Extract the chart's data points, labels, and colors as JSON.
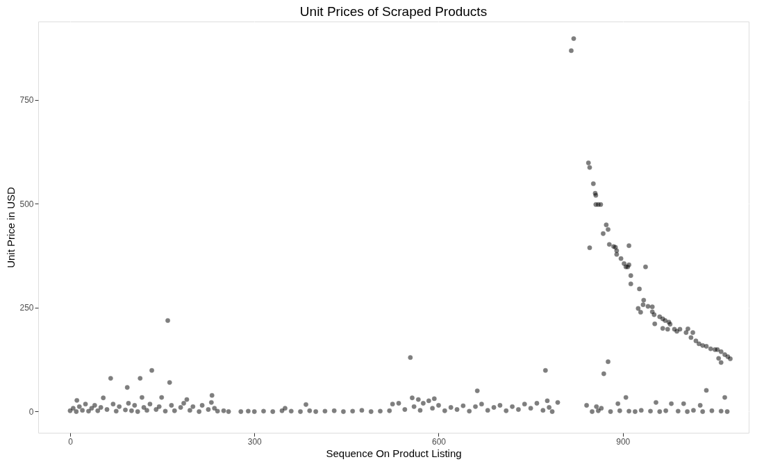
{
  "chart_data": {
    "type": "scatter",
    "title": "Unit Prices of Scraped Products",
    "xlabel": "Sequence On Product Listing",
    "ylabel": "Unit Price in USD",
    "xlim": [
      -52,
      1105
    ],
    "ylim": [
      -51,
      938
    ],
    "xticks": [
      0,
      300,
      600,
      900
    ],
    "yticks": [
      0,
      250,
      500,
      750
    ],
    "grid": true,
    "marker": "circle",
    "series": [
      {
        "color": "#000000",
        "x": [
          159,
          66,
          93,
          114,
          133,
          162,
          11,
          54,
          117,
          149,
          190,
          231,
          230,
          554,
          663,
          774,
          794,
          557,
          593,
          584,
          567,
          384,
          777,
          820,
          816,
          844,
          846,
          852,
          855,
          856,
          856,
          860,
          864,
          873,
          876,
          868,
          846,
          878,
          885,
          888,
          890,
          890,
          897,
          902,
          905,
          908,
          910,
          910,
          913,
          913,
          927,
          937,
          934,
          933,
          925,
          929,
          941,
          948,
          948,
          951,
          952,
          960,
          965,
          969,
          965,
          975,
          977,
          973,
          984,
          988,
          993,
          1006,
          1003,
          1014,
          1011,
          1019,
          1024,
          1030,
          1036,
          1043,
          1050,
          1054,
          1060,
          1056,
          1060,
          1066,
          1071,
          1075,
          876,
          869,
          1036,
          1066,
          905,
          954,
          979,
          999,
          1026,
          892,
          857,
          841,
          0,
          5,
          10,
          15,
          20,
          25,
          30,
          35,
          40,
          45,
          50,
          60,
          70,
          75,
          80,
          90,
          95,
          100,
          105,
          110,
          120,
          125,
          130,
          140,
          145,
          155,
          165,
          170,
          180,
          185,
          195,
          200,
          210,
          215,
          225,
          235,
          240,
          250,
          258,
          278,
          290,
          300,
          315,
          330,
          345,
          350,
          360,
          375,
          390,
          400,
          415,
          430,
          445,
          460,
          475,
          490,
          505,
          520,
          525,
          535,
          545,
          560,
          570,
          575,
          590,
          600,
          610,
          620,
          630,
          640,
          650,
          660,
          670,
          680,
          690,
          700,
          710,
          720,
          730,
          740,
          750,
          760,
          770,
          780,
          785,
          850,
          860,
          865,
          880,
          895,
          910,
          920,
          930,
          945,
          960,
          970,
          990,
          1005,
          1015,
          1030,
          1045,
          1060,
          1070
        ],
        "values": [
          219,
          80,
          58,
          80,
          99,
          70,
          27,
          33,
          34,
          34,
          29,
          39,
          22,
          130,
          50,
          99,
          22,
          33,
          31,
          26,
          29,
          17,
          26,
          897,
          868,
          598,
          587,
          548,
          525,
          520,
          498,
          498,
          498,
          449,
          438,
          428,
          394,
          402,
          397,
          395,
          387,
          378,
          368,
          356,
          348,
          348,
          353,
          399,
          327,
          307,
          295,
          348,
          268,
          257,
          248,
          239,
          253,
          252,
          240,
          233,
          211,
          228,
          223,
          219,
          200,
          215,
          210,
          198,
          198,
          193,
          198,
          199,
          190,
          190,
          178,
          170,
          163,
          159,
          157,
          151,
          149,
          149,
          144,
          128,
          118,
          137,
          132,
          127,
          120,
          91,
          51,
          34,
          34,
          22,
          19,
          19,
          15,
          19,
          12,
          15,
          2,
          8,
          0,
          12,
          3,
          18,
          1,
          8,
          15,
          2,
          10,
          5,
          18,
          1,
          12,
          4,
          20,
          2,
          15,
          0,
          10,
          3,
          18,
          5,
          12,
          1,
          15,
          2,
          10,
          20,
          3,
          12,
          0,
          15,
          5,
          8,
          1,
          2,
          0,
          0,
          1,
          0,
          1,
          0,
          2,
          8,
          1,
          0,
          2,
          0,
          1,
          2,
          0,
          1,
          3,
          0,
          1,
          2,
          18,
          20,
          5,
          12,
          3,
          20,
          8,
          15,
          2,
          10,
          5,
          14,
          1,
          12,
          18,
          3,
          10,
          15,
          2,
          12,
          5,
          18,
          8,
          20,
          3,
          10,
          0,
          0,
          2,
          8,
          0,
          2,
          1,
          0,
          3,
          1,
          0,
          2,
          1,
          0,
          3,
          0,
          2,
          1,
          0
        ]
      }
    ]
  }
}
